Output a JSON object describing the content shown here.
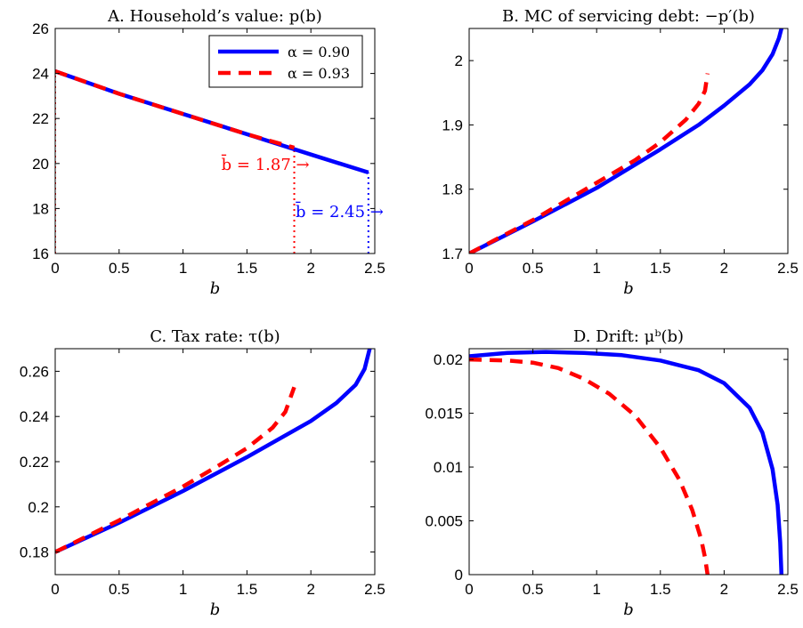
{
  "colors": {
    "blue": "#0000ff",
    "red": "#ff0000"
  },
  "chart_data": [
    {
      "id": "A",
      "type": "line",
      "title": "A. Household’s value: p(b)",
      "xlabel": "b",
      "xlim": [
        0,
        2.5
      ],
      "ylim": [
        16,
        26
      ],
      "xticks": [
        0,
        0.5,
        1,
        1.5,
        2,
        2.5
      ],
      "xtick_labels": [
        "0",
        "0.5",
        "1",
        "1.5",
        "2",
        "2.5"
      ],
      "yticks": [
        16,
        18,
        20,
        22,
        24,
        26
      ],
      "ytick_labels": [
        "16",
        "18",
        "20",
        "22",
        "24",
        "26"
      ],
      "legend": {
        "position": "top-right",
        "entries": [
          {
            "label": "α = 0.90",
            "color": "#0000ff",
            "style": "solid"
          },
          {
            "label": "α = 0.93",
            "color": "#ff0000",
            "style": "dashed"
          }
        ]
      },
      "series": [
        {
          "name": "α = 0.90",
          "color": "#0000ff",
          "style": "solid",
          "x": [
            0,
            0.5,
            1,
            1.5,
            2,
            2.45
          ],
          "y": [
            24.1,
            23.1,
            22.2,
            21.3,
            20.4,
            19.6
          ]
        },
        {
          "name": "α = 0.93",
          "color": "#ff0000",
          "style": "dashed",
          "x": [
            0,
            0.5,
            1,
            1.5,
            1.87
          ],
          "y": [
            24.1,
            23.1,
            22.2,
            21.3,
            20.7
          ]
        }
      ],
      "vlines": [
        {
          "x": 0,
          "y0": 16,
          "y1": 24.1,
          "color": "#ff0000"
        },
        {
          "x": 1.87,
          "y0": 16,
          "y1": 20.7,
          "color": "#ff0000"
        },
        {
          "x": 2.45,
          "y0": 16,
          "y1": 19.6,
          "color": "#0000ff"
        }
      ],
      "annotations": [
        {
          "text": "b̄ = 1.87 →",
          "color": "#ff0000",
          "x": 1.3,
          "y": 20.0
        },
        {
          "text": "b̄ = 2.45 →",
          "color": "#0000ff",
          "x": 1.88,
          "y": 17.9
        }
      ]
    },
    {
      "id": "B",
      "type": "line",
      "title": "B. MC of servicing debt: −p′(b)",
      "xlabel": "b",
      "xlim": [
        0,
        2.5
      ],
      "ylim": [
        1.7,
        2.05
      ],
      "xticks": [
        0,
        0.5,
        1,
        1.5,
        2,
        2.5
      ],
      "xtick_labels": [
        "0",
        "0.5",
        "1",
        "1.5",
        "2",
        "2.5"
      ],
      "yticks": [
        1.7,
        1.8,
        1.9,
        2.0
      ],
      "ytick_labels": [
        "1.7",
        "1.8",
        "1.9",
        "2"
      ],
      "series": [
        {
          "name": "α = 0.90",
          "color": "#0000ff",
          "style": "solid",
          "x": [
            0,
            0.5,
            1,
            1.5,
            1.8,
            2,
            2.2,
            2.3,
            2.38,
            2.43,
            2.45
          ],
          "y": [
            1.7,
            1.75,
            1.802,
            1.862,
            1.9,
            1.93,
            1.963,
            1.985,
            2.01,
            2.035,
            2.05
          ]
        },
        {
          "name": "α = 0.93",
          "color": "#ff0000",
          "style": "dashed",
          "x": [
            0,
            0.5,
            1,
            1.3,
            1.5,
            1.7,
            1.8,
            1.85,
            1.87
          ],
          "y": [
            1.7,
            1.752,
            1.81,
            1.845,
            1.873,
            1.908,
            1.933,
            1.953,
            1.98
          ]
        }
      ]
    },
    {
      "id": "C",
      "type": "line",
      "title": "C. Tax rate: τ(b)",
      "xlabel": "b",
      "xlim": [
        0,
        2.5
      ],
      "ylim": [
        0.17,
        0.27
      ],
      "xticks": [
        0,
        0.5,
        1,
        1.5,
        2,
        2.5
      ],
      "xtick_labels": [
        "0",
        "0.5",
        "1",
        "1.5",
        "2",
        "2.5"
      ],
      "yticks": [
        0.18,
        0.2,
        0.22,
        0.24,
        0.26
      ],
      "ytick_labels": [
        "0.18",
        "0.2",
        "0.22",
        "0.24",
        "0.26"
      ],
      "series": [
        {
          "name": "α = 0.90",
          "color": "#0000ff",
          "style": "solid",
          "x": [
            0,
            0.5,
            1,
            1.5,
            2,
            2.2,
            2.35,
            2.42,
            2.46
          ],
          "y": [
            0.18,
            0.193,
            0.207,
            0.222,
            0.238,
            0.246,
            0.254,
            0.261,
            0.27
          ]
        },
        {
          "name": "α = 0.93",
          "color": "#ff0000",
          "style": "dashed",
          "x": [
            0,
            0.5,
            1,
            1.3,
            1.5,
            1.7,
            1.8,
            1.87
          ],
          "y": [
            0.18,
            0.194,
            0.209,
            0.219,
            0.226,
            0.235,
            0.242,
            0.253
          ]
        }
      ]
    },
    {
      "id": "D",
      "type": "line",
      "title": "D. Drift: μᵇ(b)",
      "xlabel": "b",
      "xlim": [
        0,
        2.5
      ],
      "ylim": [
        0,
        0.021
      ],
      "xticks": [
        0,
        0.5,
        1,
        1.5,
        2,
        2.5
      ],
      "xtick_labels": [
        "0",
        "0.5",
        "1",
        "1.5",
        "2",
        "2.5"
      ],
      "yticks": [
        0,
        0.005,
        0.01,
        0.015,
        0.02
      ],
      "ytick_labels": [
        "0",
        "0.005",
        "0.01",
        "0.015",
        "0.02"
      ],
      "series": [
        {
          "name": "α = 0.90",
          "color": "#0000ff",
          "style": "solid",
          "x": [
            0,
            0.3,
            0.6,
            0.9,
            1.2,
            1.5,
            1.8,
            2.0,
            2.2,
            2.3,
            2.38,
            2.42,
            2.44,
            2.45
          ],
          "y": [
            0.0203,
            0.0206,
            0.0207,
            0.0206,
            0.0204,
            0.0199,
            0.019,
            0.0178,
            0.0155,
            0.0132,
            0.0098,
            0.0065,
            0.003,
            0.0
          ]
        },
        {
          "name": "α = 0.93",
          "color": "#ff0000",
          "style": "dashed",
          "x": [
            0,
            0.3,
            0.5,
            0.7,
            0.9,
            1.1,
            1.3,
            1.5,
            1.65,
            1.75,
            1.82,
            1.85,
            1.87
          ],
          "y": [
            0.02,
            0.0199,
            0.0197,
            0.0192,
            0.0182,
            0.0168,
            0.0148,
            0.0118,
            0.0088,
            0.006,
            0.0033,
            0.0016,
            0.0
          ]
        }
      ]
    }
  ]
}
